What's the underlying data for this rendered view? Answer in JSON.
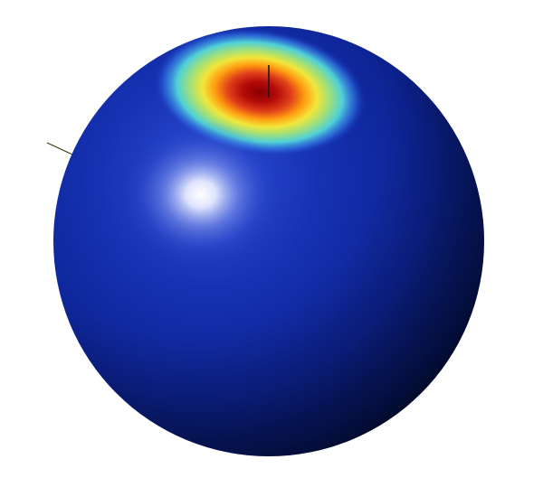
{
  "scene": {
    "background": "#ffffff",
    "sphere": {
      "base_color": "#0f2a9e",
      "shadow_color": "#000a3c",
      "rim_color": "#081a6a"
    },
    "heat_spot": {
      "peak_color": "#b40000",
      "colormap": [
        "#8b0000",
        "#d11a1a",
        "#ff6a00",
        "#ffd400",
        "#a8e05a",
        "#3fd0c8",
        "#2a6fd6",
        "#0f2a9e"
      ]
    },
    "specular_highlight_color": "#ffffff",
    "axis_colors": {
      "vertical_axis": "#1a1a1a",
      "side_axis": "#3a3a12"
    }
  }
}
